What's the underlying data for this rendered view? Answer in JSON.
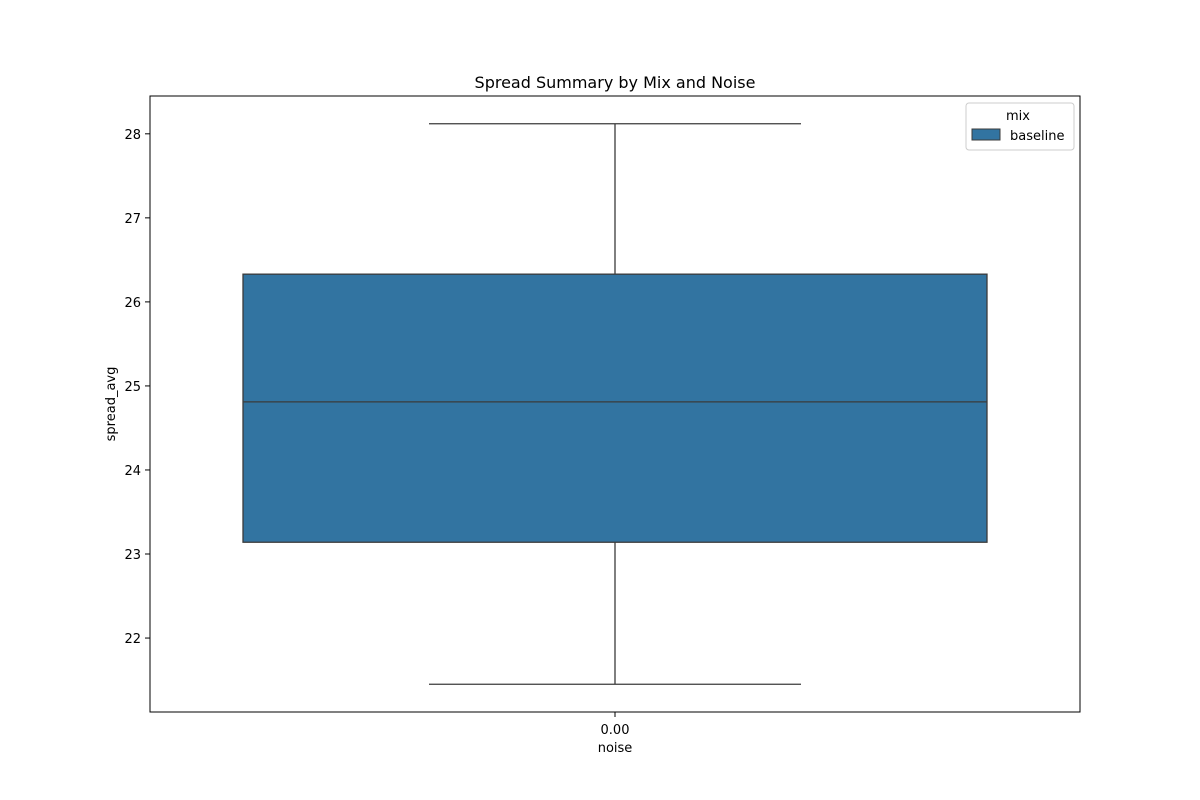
{
  "chart_data": {
    "type": "box",
    "title": "Spread Summary by Mix and Noise",
    "xlabel": "noise",
    "ylabel": "spread_avg",
    "categories": [
      "0.00"
    ],
    "ylim": [
      21.12,
      28.45
    ],
    "yticks": [
      22,
      23,
      24,
      25,
      26,
      27,
      28
    ],
    "grid": false,
    "legend": {
      "title": "mix",
      "placement": "top-right",
      "entries": [
        "baseline"
      ]
    },
    "series": [
      {
        "name": "baseline",
        "color": "#3274a1",
        "boxes": [
          {
            "category": "0.00",
            "whisker_low": 21.45,
            "q1": 23.14,
            "median": 24.81,
            "q3": 26.33,
            "whisker_high": 28.12
          }
        ]
      }
    ]
  }
}
